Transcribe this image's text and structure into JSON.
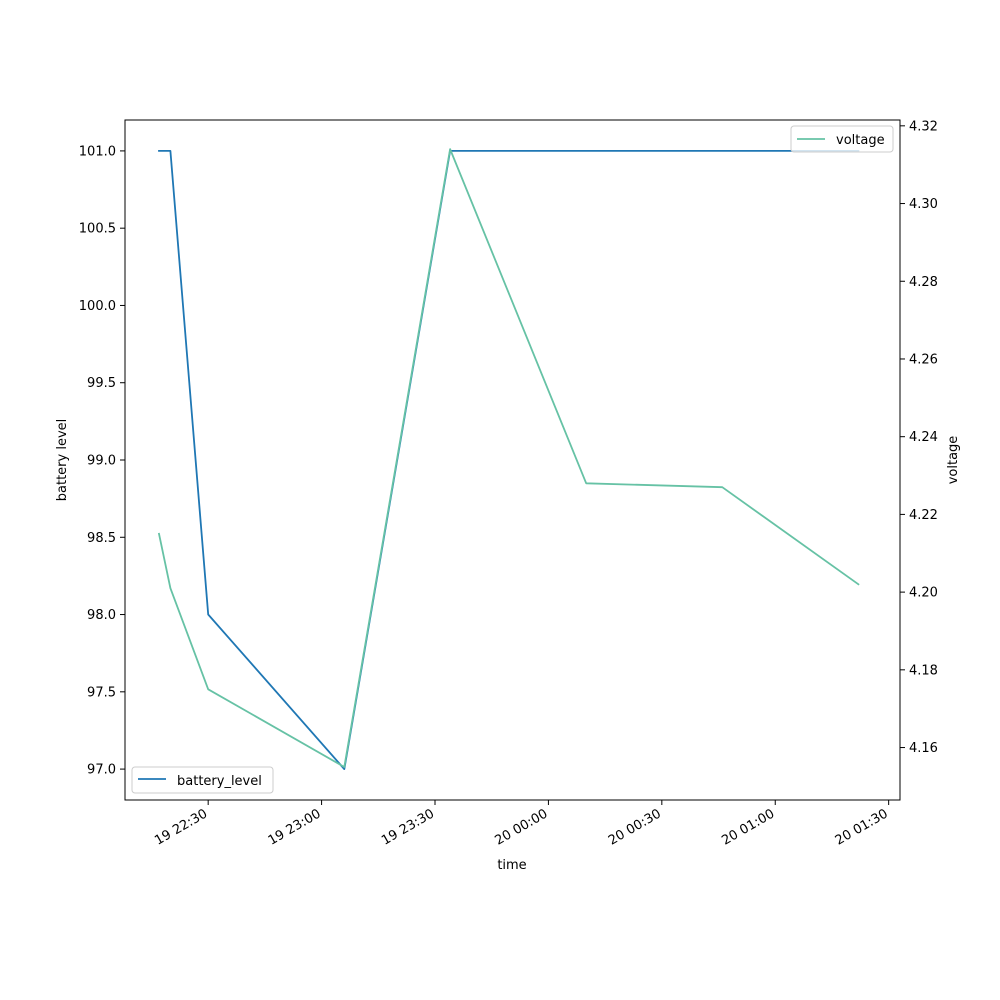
{
  "chart_data": {
    "type": "line",
    "xlabel": "time",
    "ylabel_left": "battery level",
    "ylabel_right": "voltage",
    "xlim": [
      "2023-06-19 22:08",
      "2023-06-20 01:33"
    ],
    "ylim_left": [
      96.8,
      101.2
    ],
    "ylim_right": [
      4.1465,
      4.3215
    ],
    "x_ticks": [
      {
        "value": "2023-06-19 22:30",
        "label": "19 22:30"
      },
      {
        "value": "2023-06-19 23:00",
        "label": "19 23:00"
      },
      {
        "value": "2023-06-19 23:30",
        "label": "19 23:30"
      },
      {
        "value": "2023-06-20 00:00",
        "label": "20 00:00"
      },
      {
        "value": "2023-06-20 00:30",
        "label": "20 00:30"
      },
      {
        "value": "2023-06-20 01:00",
        "label": "20 01:00"
      },
      {
        "value": "2023-06-20 01:30",
        "label": "20 01:30"
      }
    ],
    "y_ticks_left": [
      "97.0",
      "97.5",
      "98.0",
      "98.5",
      "99.0",
      "99.5",
      "100.0",
      "100.5",
      "101.0"
    ],
    "y_ticks_right": [
      "4.16",
      "4.18",
      "4.20",
      "4.22",
      "4.24",
      "4.26",
      "4.28",
      "4.30",
      "4.32"
    ],
    "series": [
      {
        "name": "battery_level",
        "axis": "left",
        "color": "#1f77b4",
        "legend_position": "lower-left",
        "points": [
          {
            "x": "2023-06-19 22:17",
            "y": 101
          },
          {
            "x": "2023-06-19 22:20",
            "y": 101
          },
          {
            "x": "2023-06-19 22:30",
            "y": 98
          },
          {
            "x": "2023-06-19 23:06",
            "y": 97
          },
          {
            "x": "2023-06-19 23:34",
            "y": 101
          },
          {
            "x": "2023-06-20 00:10",
            "y": 101
          },
          {
            "x": "2023-06-20 00:46",
            "y": 101
          },
          {
            "x": "2023-06-20 01:22",
            "y": 101
          }
        ]
      },
      {
        "name": "voltage",
        "axis": "right",
        "color": "#66c2a5",
        "legend_position": "upper-right",
        "points": [
          {
            "x": "2023-06-19 22:17",
            "y": 4.215
          },
          {
            "x": "2023-06-19 22:20",
            "y": 4.201
          },
          {
            "x": "2023-06-19 22:30",
            "y": 4.175
          },
          {
            "x": "2023-06-19 23:06",
            "y": 4.155
          },
          {
            "x": "2023-06-19 23:34",
            "y": 4.314
          },
          {
            "x": "2023-06-20 00:10",
            "y": 4.228
          },
          {
            "x": "2023-06-20 00:46",
            "y": 4.227
          },
          {
            "x": "2023-06-20 01:22",
            "y": 4.202
          }
        ]
      }
    ]
  }
}
